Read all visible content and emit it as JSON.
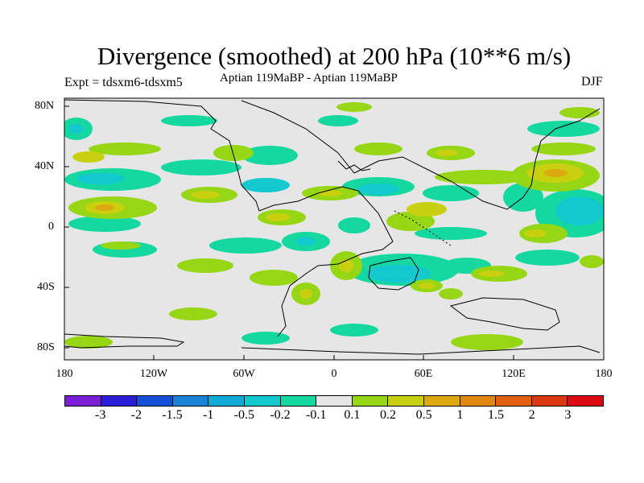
{
  "title": "Divergence (smoothed) at 200 hPa (10**6 m/s)",
  "experiment": "Expt = tdsxm6-tdsxm5",
  "period": "Aptian   119MaBP - Aptian   119MaBP",
  "season": "DJF",
  "y_axis_labels": [
    "80N",
    "40N",
    "0",
    "40S",
    "80S"
  ],
  "x_axis_labels": [
    "180",
    "120W",
    "60W",
    "0",
    "60E",
    "120E",
    "180"
  ],
  "colorbar": {
    "colors": [
      "#7a1fd6",
      "#2c1ed6",
      "#1450d6",
      "#1c84d6",
      "#10aad6",
      "#14c8d0",
      "#14d8a0",
      "#e6e6e6",
      "#96d614",
      "#c8d010",
      "#dcaa10",
      "#e08810",
      "#e06010",
      "#dc3810",
      "#dc0a10"
    ],
    "labels": [
      "-3",
      "-2",
      "-1.5",
      "-1",
      "-0.5",
      "-0.2",
      "-0.1",
      "0.1",
      "0.2",
      "0.5",
      "1",
      "1.5",
      "2",
      "3"
    ]
  },
  "colors": {
    "background": "#e6e6e6",
    "green": "#96d614",
    "yellow": "#c8d010",
    "orange": "#dcaa10",
    "cyan": "#14c8d0",
    "teal": "#14d8a0",
    "blue": "#10aad6"
  }
}
